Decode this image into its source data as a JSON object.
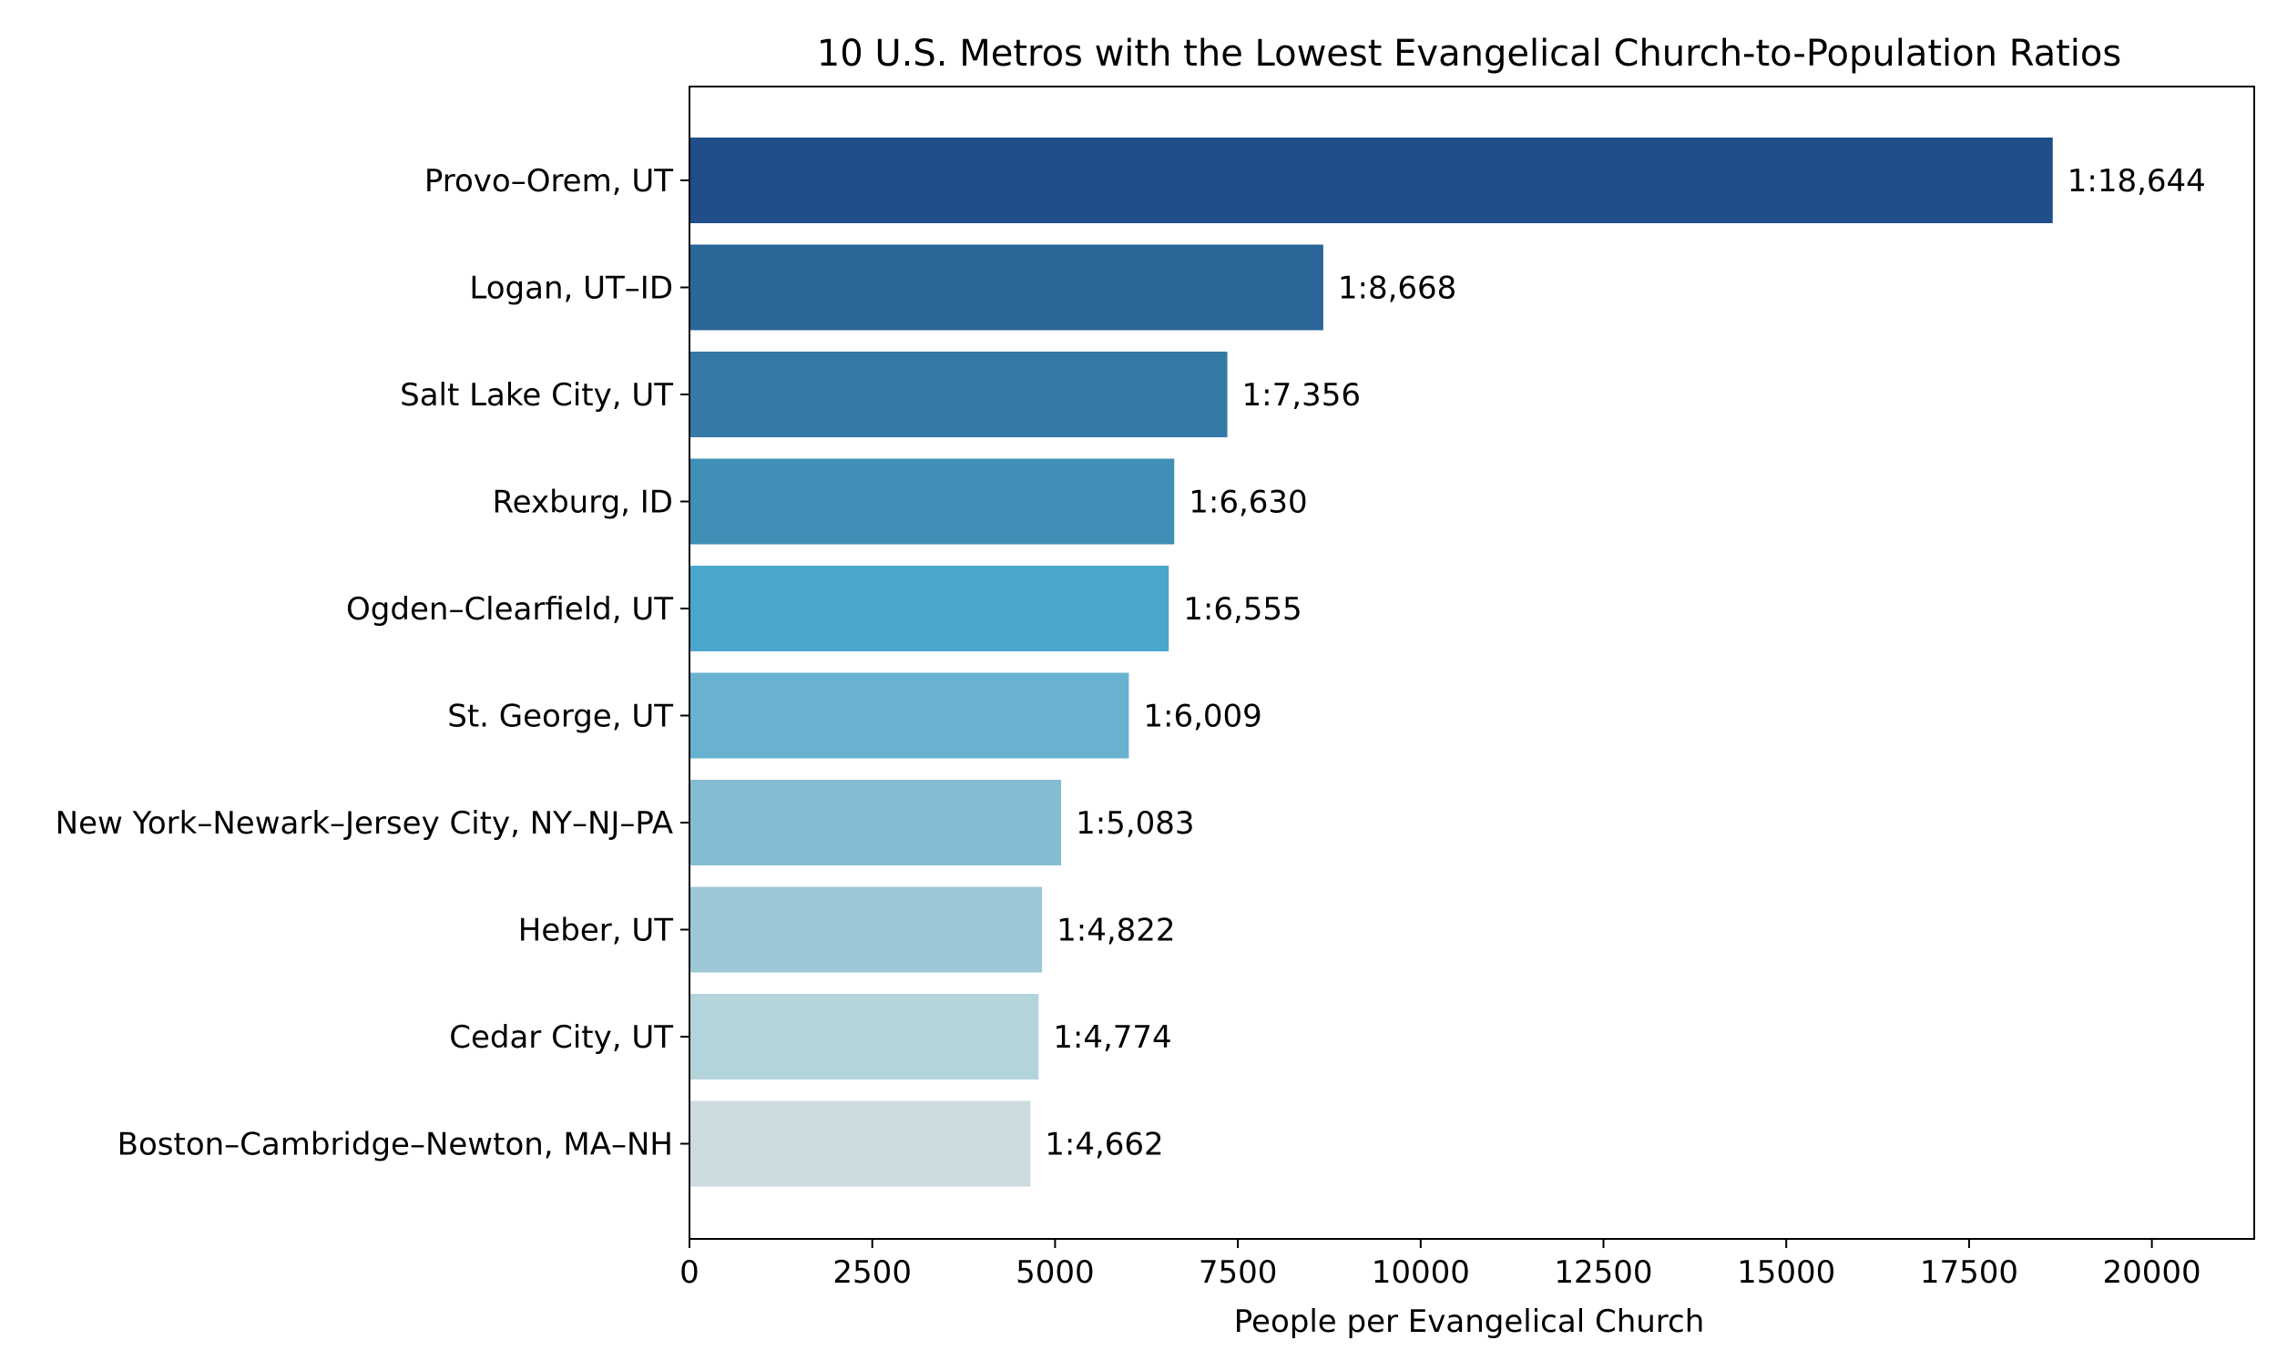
{
  "chart_data": {
    "type": "bar",
    "orientation": "horizontal",
    "title": "10 U.S. Metros with the Lowest Evangelical Church-to-Population Ratios",
    "xlabel": "People per Evangelical Church",
    "ylabel": "",
    "xlim": [
      0,
      21400
    ],
    "xticks": [
      0,
      2500,
      5000,
      7500,
      10000,
      12500,
      15000,
      17500,
      20000
    ],
    "xtick_labels": [
      "0",
      "2500",
      "5000",
      "7500",
      "10000",
      "12500",
      "15000",
      "17500",
      "20000"
    ],
    "grid": false,
    "categories": [
      "Provo–Orem, UT",
      "Logan, UT–ID",
      "Salt Lake City, UT",
      "Rexburg, ID",
      "Ogden–Clearfield, UT",
      "St. George, UT",
      "New York–Newark–Jersey City, NY–NJ–PA",
      "Heber, UT",
      "Cedar City, UT",
      "Boston–Cambridge–Newton, MA–NH"
    ],
    "values": [
      18644,
      8668,
      7356,
      6630,
      6555,
      6009,
      5083,
      4822,
      4774,
      4662
    ],
    "data_labels": [
      "1:18,644",
      "1:8,668",
      "1:7,356",
      "1:6,630",
      "1:6,555",
      "1:6,009",
      "1:5,083",
      "1:4,822",
      "1:4,774",
      "1:4,662"
    ],
    "colors": [
      "#1f4e8a",
      "#2b6699",
      "#3579a6",
      "#3f8fb6",
      "#4ba6cb",
      "#68b2cf",
      "#84bdd3",
      "#9cc8d6",
      "#b4d4dc",
      "#ccdbe0"
    ]
  }
}
